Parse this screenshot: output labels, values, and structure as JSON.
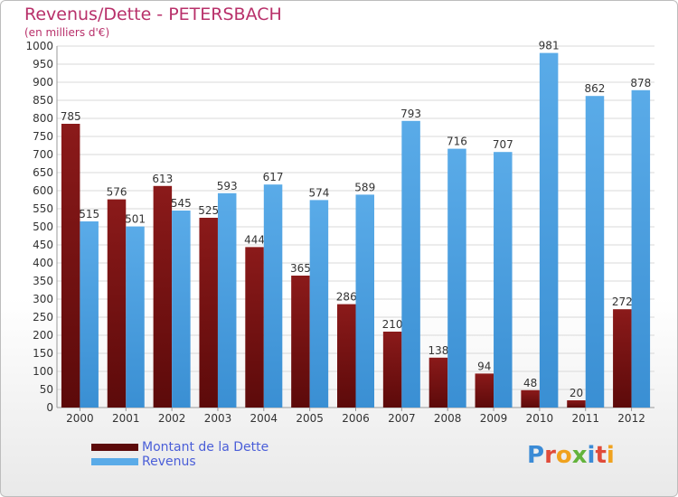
{
  "header": {
    "title": "Revenus/Dette - PETERSBACH",
    "subtitle": "(en milliers d'€)"
  },
  "legend": {
    "debt_label": "Montant de la Dette",
    "revenue_label": "Revenus"
  },
  "logo": {
    "text": "Proxiti",
    "letter_colors": [
      "#3b8bd6",
      "#e04b3a",
      "#f0a21e",
      "#63b33b",
      "#3b8bd6",
      "#e04b3a",
      "#f0a21e"
    ]
  },
  "colors": {
    "debt": "#8b1a1a",
    "debt_dark": "#5c0a0a",
    "revenue": "#5aabe8",
    "revenue_dark": "#3a8fd3",
    "grid": "#d8d8d8",
    "text": "#333333"
  },
  "chart_data": {
    "type": "bar",
    "title": "Revenus/Dette - PETERSBACH",
    "subtitle": "(en milliers d'€)",
    "categories": [
      "2000",
      "2001",
      "2002",
      "2003",
      "2004",
      "2005",
      "2006",
      "2007",
      "2008",
      "2009",
      "2010",
      "2011",
      "2012"
    ],
    "series": [
      {
        "name": "Montant de la Dette",
        "values": [
          785,
          576,
          613,
          525,
          444,
          365,
          286,
          210,
          138,
          94,
          48,
          20,
          272
        ]
      },
      {
        "name": "Revenus",
        "values": [
          515,
          501,
          545,
          593,
          617,
          574,
          589,
          793,
          716,
          707,
          981,
          862,
          878
        ]
      }
    ],
    "ylim": [
      0,
      1000
    ],
    "ytick_step": 50,
    "grid": true,
    "legend_position": "bottom-left"
  }
}
